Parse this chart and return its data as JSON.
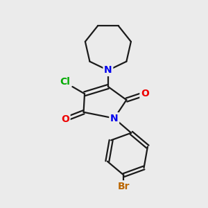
{
  "bg_color": "#ebebeb",
  "bond_color": "#1a1a1a",
  "bond_width": 1.6,
  "N_color": "#0000ee",
  "O_color": "#ee0000",
  "Cl_color": "#00aa00",
  "Br_color": "#bb6600",
  "font_size_atom": 10,
  "fig_width": 3.0,
  "fig_height": 3.0,
  "dpi": 100,
  "xlim": [
    0,
    10
  ],
  "ylim": [
    0,
    10
  ]
}
